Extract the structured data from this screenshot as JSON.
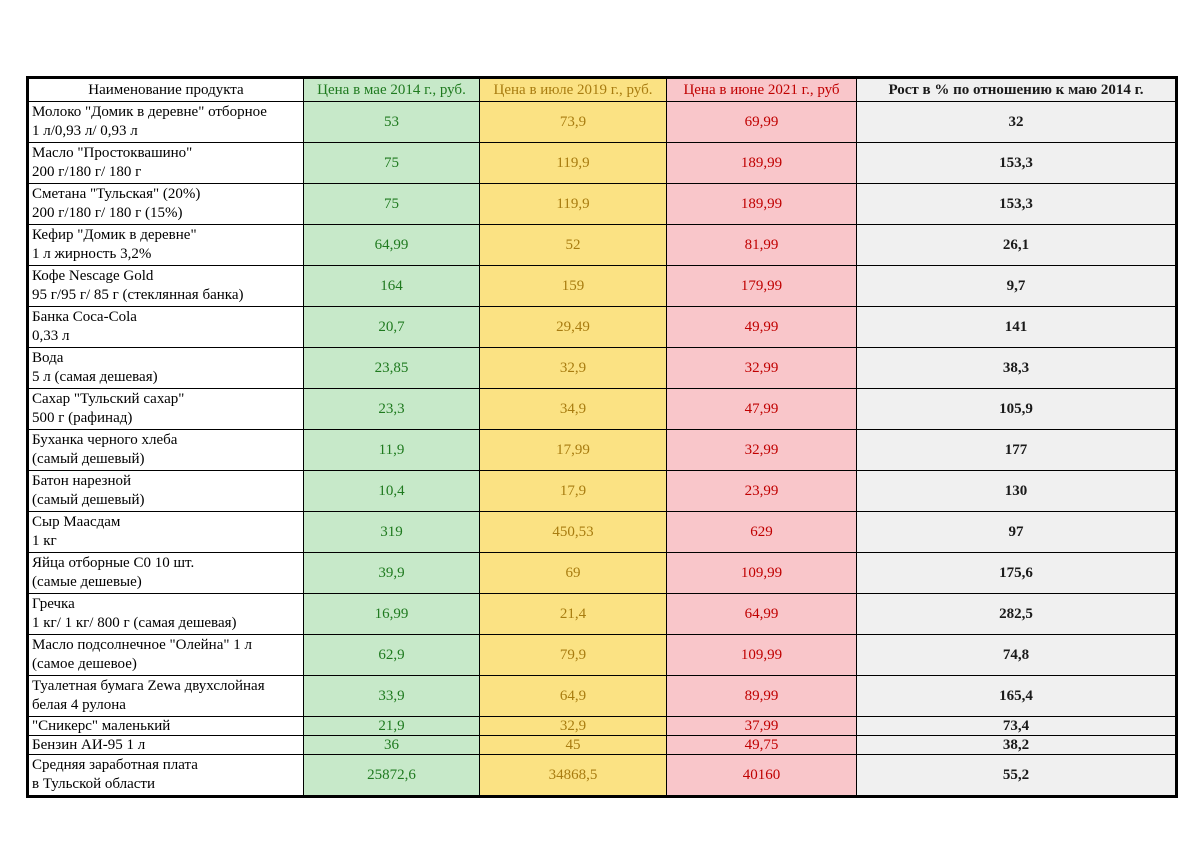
{
  "colors": {
    "page_bg": "#ffffff",
    "border": "#000000",
    "price_2014_bg": "#c7e9c9",
    "price_2014_text": "#1f7a1f",
    "price_2019_bg": "#fbe283",
    "price_2019_text": "#a87c10",
    "price_2021_bg": "#f9c6ca",
    "price_2021_text": "#c00000",
    "growth_bg": "#f0f0f0",
    "growth_text": "#1a1a1a"
  },
  "chart_data": {
    "type": "table",
    "title": "",
    "columns": [
      "Наименование продукта",
      "Цена в мае 2014 г., руб.",
      "Цена в июле 2019 г., руб.",
      "Цена в июне 2021 г., руб",
      "Рост в % по отношению к маю 2014 г."
    ],
    "rows": [
      {
        "name_lines": [
          "Молоко \"Домик в деревне\" отборное",
          "1 л/0,93 л/ 0,93 л"
        ],
        "price_2014": "53",
        "price_2019": "73,9",
        "price_2021": "69,99",
        "growth": "32"
      },
      {
        "name_lines": [
          "Масло \"Простоквашино\"",
          "200 г/180 г/ 180 г"
        ],
        "price_2014": "75",
        "price_2019": "119,9",
        "price_2021": "189,99",
        "growth": "153,3"
      },
      {
        "name_lines": [
          "Сметана \"Тульская\" (20%)",
          "200 г/180 г/ 180 г (15%)"
        ],
        "price_2014": "75",
        "price_2019": "119,9",
        "price_2021": "189,99",
        "growth": "153,3"
      },
      {
        "name_lines": [
          "Кефир \"Домик в деревне\"",
          "1 л жирность 3,2%"
        ],
        "price_2014": "64,99",
        "price_2019": "52",
        "price_2021": "81,99",
        "growth": "26,1"
      },
      {
        "name_lines": [
          "Кофе Nescage Gold",
          "95 г/95 г/ 85 г (стеклянная банка)"
        ],
        "price_2014": "164",
        "price_2019": "159",
        "price_2021": "179,99",
        "growth": "9,7"
      },
      {
        "name_lines": [
          "Банка Coca-Cola",
          "0,33 л"
        ],
        "price_2014": "20,7",
        "price_2019": "29,49",
        "price_2021": "49,99",
        "growth": "141"
      },
      {
        "name_lines": [
          "Вода",
          "5 л (самая дешевая)"
        ],
        "price_2014": "23,85",
        "price_2019": "32,9",
        "price_2021": "32,99",
        "growth": "38,3"
      },
      {
        "name_lines": [
          "Сахар \"Тульский сахар\"",
          "500 г (рафинад)"
        ],
        "price_2014": "23,3",
        "price_2019": "34,9",
        "price_2021": "47,99",
        "growth": "105,9"
      },
      {
        "name_lines": [
          "Буханка черного хлеба",
          "(самый дешевый)"
        ],
        "price_2014": "11,9",
        "price_2019": "17,99",
        "price_2021": "32,99",
        "growth": "177"
      },
      {
        "name_lines": [
          "Батон нарезной",
          "(самый дешевый)"
        ],
        "price_2014": "10,4",
        "price_2019": "17,9",
        "price_2021": "23,99",
        "growth": "130"
      },
      {
        "name_lines": [
          "Сыр Маасдам",
          "1 кг"
        ],
        "price_2014": "319",
        "price_2019": "450,53",
        "price_2021": "629",
        "growth": "97"
      },
      {
        "name_lines": [
          "Яйца отборные С0 10 шт.",
          "(самые дешевые)"
        ],
        "price_2014": "39,9",
        "price_2019": "69",
        "price_2021": "109,99",
        "growth": "175,6"
      },
      {
        "name_lines": [
          "Гречка",
          "1 кг/ 1 кг/ 800 г (самая дешевая)"
        ],
        "price_2014": "16,99",
        "price_2019": "21,4",
        "price_2021": "64,99",
        "growth": "282,5"
      },
      {
        "name_lines": [
          "Масло подсолнечное \"Олейна\" 1 л",
          "(самое дешевое)"
        ],
        "price_2014": "62,9",
        "price_2019": "79,9",
        "price_2021": "109,99",
        "growth": "74,8"
      },
      {
        "name_lines": [
          "Туалетная бумага Zewa двухслойная",
          "белая 4 рулона"
        ],
        "price_2014": "33,9",
        "price_2019": "64,9",
        "price_2021": "89,99",
        "growth": "165,4"
      },
      {
        "name_lines": [
          "\"Сникерс\" маленький"
        ],
        "price_2014": "21,9",
        "price_2019": "32,9",
        "price_2021": "37,99",
        "growth": "73,4"
      },
      {
        "name_lines": [
          "Бензин АИ-95 1 л"
        ],
        "price_2014": "36",
        "price_2019": "45",
        "price_2021": "49,75",
        "growth": "38,2"
      },
      {
        "name_lines": [
          "Средняя заработная плата",
          "в Тульской области"
        ],
        "price_2014": "25872,6",
        "price_2019": "34868,5",
        "price_2021": "40160",
        "growth": "55,2"
      }
    ]
  }
}
